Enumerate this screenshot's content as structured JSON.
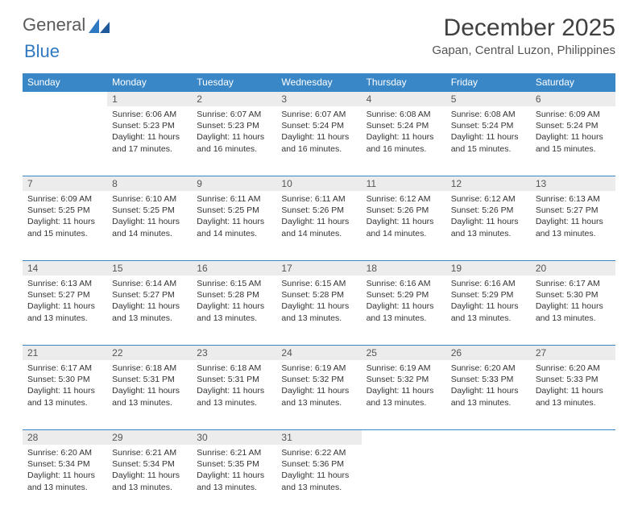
{
  "brand": {
    "word1": "General",
    "word2": "Blue"
  },
  "title": "December 2025",
  "location": "Gapan, Central Luzon, Philippines",
  "colors": {
    "header_bg": "#3a87c8",
    "header_text": "#ffffff",
    "daynum_bg": "#ececec",
    "rule": "#3a87c8",
    "text": "#333333",
    "title_text": "#404040"
  },
  "fonts": {
    "body_pt": 10.5,
    "daynum_pt": 12,
    "th_pt": 12,
    "title_pt": 30,
    "location_pt": 15
  },
  "weekdays": [
    "Sunday",
    "Monday",
    "Tuesday",
    "Wednesday",
    "Thursday",
    "Friday",
    "Saturday"
  ],
  "weeks": [
    [
      {
        "n": "",
        "blank": true
      },
      {
        "n": "1",
        "sunrise": "Sunrise: 6:06 AM",
        "sunset": "Sunset: 5:23 PM",
        "day1": "Daylight: 11 hours",
        "day2": "and 17 minutes."
      },
      {
        "n": "2",
        "sunrise": "Sunrise: 6:07 AM",
        "sunset": "Sunset: 5:23 PM",
        "day1": "Daylight: 11 hours",
        "day2": "and 16 minutes."
      },
      {
        "n": "3",
        "sunrise": "Sunrise: 6:07 AM",
        "sunset": "Sunset: 5:24 PM",
        "day1": "Daylight: 11 hours",
        "day2": "and 16 minutes."
      },
      {
        "n": "4",
        "sunrise": "Sunrise: 6:08 AM",
        "sunset": "Sunset: 5:24 PM",
        "day1": "Daylight: 11 hours",
        "day2": "and 16 minutes."
      },
      {
        "n": "5",
        "sunrise": "Sunrise: 6:08 AM",
        "sunset": "Sunset: 5:24 PM",
        "day1": "Daylight: 11 hours",
        "day2": "and 15 minutes."
      },
      {
        "n": "6",
        "sunrise": "Sunrise: 6:09 AM",
        "sunset": "Sunset: 5:24 PM",
        "day1": "Daylight: 11 hours",
        "day2": "and 15 minutes."
      }
    ],
    [
      {
        "n": "7",
        "sunrise": "Sunrise: 6:09 AM",
        "sunset": "Sunset: 5:25 PM",
        "day1": "Daylight: 11 hours",
        "day2": "and 15 minutes."
      },
      {
        "n": "8",
        "sunrise": "Sunrise: 6:10 AM",
        "sunset": "Sunset: 5:25 PM",
        "day1": "Daylight: 11 hours",
        "day2": "and 14 minutes."
      },
      {
        "n": "9",
        "sunrise": "Sunrise: 6:11 AM",
        "sunset": "Sunset: 5:25 PM",
        "day1": "Daylight: 11 hours",
        "day2": "and 14 minutes."
      },
      {
        "n": "10",
        "sunrise": "Sunrise: 6:11 AM",
        "sunset": "Sunset: 5:26 PM",
        "day1": "Daylight: 11 hours",
        "day2": "and 14 minutes."
      },
      {
        "n": "11",
        "sunrise": "Sunrise: 6:12 AM",
        "sunset": "Sunset: 5:26 PM",
        "day1": "Daylight: 11 hours",
        "day2": "and 14 minutes."
      },
      {
        "n": "12",
        "sunrise": "Sunrise: 6:12 AM",
        "sunset": "Sunset: 5:26 PM",
        "day1": "Daylight: 11 hours",
        "day2": "and 13 minutes."
      },
      {
        "n": "13",
        "sunrise": "Sunrise: 6:13 AM",
        "sunset": "Sunset: 5:27 PM",
        "day1": "Daylight: 11 hours",
        "day2": "and 13 minutes."
      }
    ],
    [
      {
        "n": "14",
        "sunrise": "Sunrise: 6:13 AM",
        "sunset": "Sunset: 5:27 PM",
        "day1": "Daylight: 11 hours",
        "day2": "and 13 minutes."
      },
      {
        "n": "15",
        "sunrise": "Sunrise: 6:14 AM",
        "sunset": "Sunset: 5:27 PM",
        "day1": "Daylight: 11 hours",
        "day2": "and 13 minutes."
      },
      {
        "n": "16",
        "sunrise": "Sunrise: 6:15 AM",
        "sunset": "Sunset: 5:28 PM",
        "day1": "Daylight: 11 hours",
        "day2": "and 13 minutes."
      },
      {
        "n": "17",
        "sunrise": "Sunrise: 6:15 AM",
        "sunset": "Sunset: 5:28 PM",
        "day1": "Daylight: 11 hours",
        "day2": "and 13 minutes."
      },
      {
        "n": "18",
        "sunrise": "Sunrise: 6:16 AM",
        "sunset": "Sunset: 5:29 PM",
        "day1": "Daylight: 11 hours",
        "day2": "and 13 minutes."
      },
      {
        "n": "19",
        "sunrise": "Sunrise: 6:16 AM",
        "sunset": "Sunset: 5:29 PM",
        "day1": "Daylight: 11 hours",
        "day2": "and 13 minutes."
      },
      {
        "n": "20",
        "sunrise": "Sunrise: 6:17 AM",
        "sunset": "Sunset: 5:30 PM",
        "day1": "Daylight: 11 hours",
        "day2": "and 13 minutes."
      }
    ],
    [
      {
        "n": "21",
        "sunrise": "Sunrise: 6:17 AM",
        "sunset": "Sunset: 5:30 PM",
        "day1": "Daylight: 11 hours",
        "day2": "and 13 minutes."
      },
      {
        "n": "22",
        "sunrise": "Sunrise: 6:18 AM",
        "sunset": "Sunset: 5:31 PM",
        "day1": "Daylight: 11 hours",
        "day2": "and 13 minutes."
      },
      {
        "n": "23",
        "sunrise": "Sunrise: 6:18 AM",
        "sunset": "Sunset: 5:31 PM",
        "day1": "Daylight: 11 hours",
        "day2": "and 13 minutes."
      },
      {
        "n": "24",
        "sunrise": "Sunrise: 6:19 AM",
        "sunset": "Sunset: 5:32 PM",
        "day1": "Daylight: 11 hours",
        "day2": "and 13 minutes."
      },
      {
        "n": "25",
        "sunrise": "Sunrise: 6:19 AM",
        "sunset": "Sunset: 5:32 PM",
        "day1": "Daylight: 11 hours",
        "day2": "and 13 minutes."
      },
      {
        "n": "26",
        "sunrise": "Sunrise: 6:20 AM",
        "sunset": "Sunset: 5:33 PM",
        "day1": "Daylight: 11 hours",
        "day2": "and 13 minutes."
      },
      {
        "n": "27",
        "sunrise": "Sunrise: 6:20 AM",
        "sunset": "Sunset: 5:33 PM",
        "day1": "Daylight: 11 hours",
        "day2": "and 13 minutes."
      }
    ],
    [
      {
        "n": "28",
        "sunrise": "Sunrise: 6:20 AM",
        "sunset": "Sunset: 5:34 PM",
        "day1": "Daylight: 11 hours",
        "day2": "and 13 minutes."
      },
      {
        "n": "29",
        "sunrise": "Sunrise: 6:21 AM",
        "sunset": "Sunset: 5:34 PM",
        "day1": "Daylight: 11 hours",
        "day2": "and 13 minutes."
      },
      {
        "n": "30",
        "sunrise": "Sunrise: 6:21 AM",
        "sunset": "Sunset: 5:35 PM",
        "day1": "Daylight: 11 hours",
        "day2": "and 13 minutes."
      },
      {
        "n": "31",
        "sunrise": "Sunrise: 6:22 AM",
        "sunset": "Sunset: 5:36 PM",
        "day1": "Daylight: 11 hours",
        "day2": "and 13 minutes."
      },
      {
        "n": "",
        "blank": true
      },
      {
        "n": "",
        "blank": true
      },
      {
        "n": "",
        "blank": true
      }
    ]
  ]
}
